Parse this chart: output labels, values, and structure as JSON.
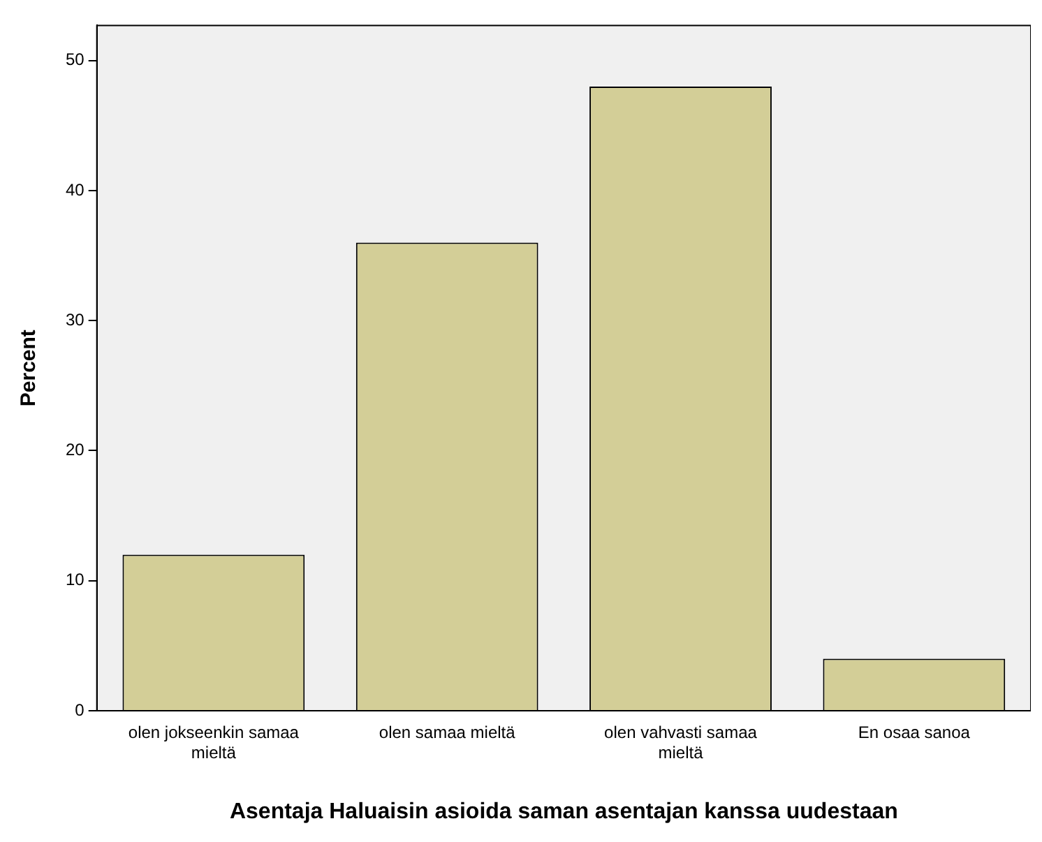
{
  "chart_data": {
    "type": "bar",
    "xlabel": "Asentaja Haluaisin asioida saman asentajan kanssa uudestaan",
    "ylabel": "Percent",
    "categories": [
      "olen jokseenkin samaa mieltä",
      "olen samaa mieltä",
      "olen vahvasti samaa mieltä",
      "En osaa sanoa"
    ],
    "values": [
      12,
      36,
      48,
      4
    ],
    "color": "#d3ce97",
    "ylim": [
      0,
      52.7
    ],
    "yticks": [
      0,
      10,
      20,
      30,
      40,
      50
    ],
    "grid": false,
    "legend": false
  }
}
